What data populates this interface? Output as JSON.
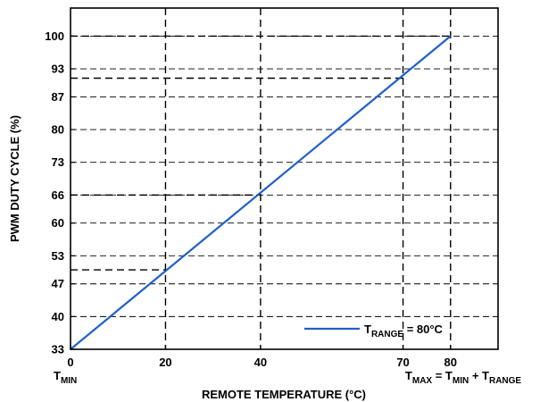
{
  "chart_data": {
    "type": "line",
    "xlabel": "REMOTE TEMPERATURE (°C)",
    "ylabel": "PWM DUTY CYCLE (%)",
    "xlim": [
      0,
      90
    ],
    "ylim": [
      33,
      106
    ],
    "x_ticks": [
      {
        "value": 0,
        "label": "0"
      },
      {
        "value": 20,
        "label": "20"
      },
      {
        "value": 40,
        "label": "40"
      },
      {
        "value": 70,
        "label": "70"
      },
      {
        "value": 80,
        "label": "80"
      }
    ],
    "y_ticks": [
      {
        "value": 33,
        "label": "33"
      },
      {
        "value": 40,
        "label": "40"
      },
      {
        "value": 47,
        "label": "47"
      },
      {
        "value": 53,
        "label": "53"
      },
      {
        "value": 60,
        "label": "60"
      },
      {
        "value": 66,
        "label": "66"
      },
      {
        "value": 73,
        "label": "73"
      },
      {
        "value": 80,
        "label": "80"
      },
      {
        "value": 87,
        "label": "87"
      },
      {
        "value": 93,
        "label": "93"
      },
      {
        "value": 100,
        "label": "100"
      }
    ],
    "series": [
      {
        "values": [
          {
            "x": 0,
            "y": 33
          },
          {
            "x": 80,
            "y": 100
          }
        ],
        "color": "#1f5fc8"
      }
    ],
    "gridlines": "dashed",
    "guide_lines": [
      {
        "x": 20,
        "y": 50
      },
      {
        "x": 40,
        "y": 66
      },
      {
        "x": 70,
        "y": 91
      },
      {
        "x": 80,
        "y": 100
      }
    ],
    "legend": {
      "placement": "bottom-right",
      "t": "T",
      "sub": "RANGE",
      "rest": " = 80°C"
    },
    "annotations": {
      "tmin": {
        "t": "T",
        "sub": "MIN"
      },
      "tmax": [
        {
          "t": "T",
          "sub": "MAX"
        },
        {
          "t": " = T",
          "sub": "MIN"
        },
        {
          "t": " + T",
          "sub": "RANGE"
        }
      ]
    },
    "colors": {
      "line": "#1f5fc8",
      "grid": "#000000",
      "axis": "#000000"
    }
  }
}
